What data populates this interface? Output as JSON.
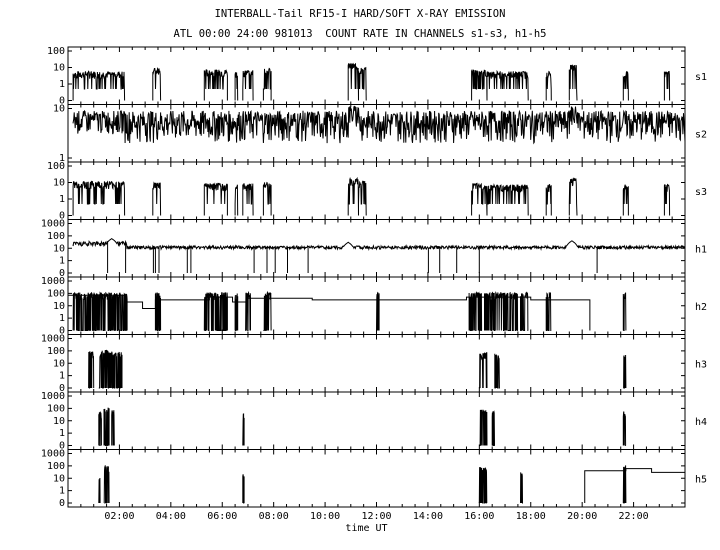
{
  "title": "INTERBALL-Tail RF15-I HARD/SOFT X-RAY EMISSION",
  "subtitle": "ATL 00:00 24:00 981013  COUNT RATE IN CHANNELS s1-s3, h1-h5",
  "xlabel": "time UT",
  "chart_data": {
    "type": "line",
    "title": "INTERBALL-Tail RF15-I HARD/SOFT X-RAY EMISSION",
    "subtitle": "ATL 00:00 24:00 981013  COUNT RATE IN CHANNELS s1-s3, h1-h5",
    "xlabel": "time UT",
    "x_range_hours": [
      0,
      24
    ],
    "x_ticks": [
      "02:00",
      "04:00",
      "06:00",
      "08:00",
      "10:00",
      "12:00",
      "14:00",
      "16:00",
      "18:00",
      "20:00",
      "22:00"
    ],
    "y_scale": "log",
    "panels": [
      {
        "name": "s1",
        "yticks": [
          "100",
          "10",
          "1",
          "0"
        ],
        "baseline": 4,
        "bursts": [
          [
            0.2,
            2.2,
            4
          ],
          [
            3.3,
            3.6,
            6
          ],
          [
            5.3,
            6.2,
            5
          ],
          [
            6.5,
            6.6,
            4
          ],
          [
            6.8,
            7.2,
            5
          ],
          [
            7.6,
            7.9,
            6
          ],
          [
            10.9,
            11.3,
            12
          ],
          [
            11.3,
            11.6,
            7
          ],
          [
            15.7,
            16.3,
            5
          ],
          [
            16.3,
            17.9,
            4
          ],
          [
            18.6,
            18.8,
            4
          ],
          [
            19.5,
            19.8,
            10
          ],
          [
            21.6,
            21.8,
            4
          ],
          [
            23.2,
            23.4,
            4
          ]
        ]
      },
      {
        "name": "s2",
        "yticks": [
          "10",
          "1"
        ],
        "baseline": 5,
        "noise": true,
        "bursts": [
          [
            0.2,
            2.2,
            6
          ],
          [
            10.9,
            11.3,
            8
          ],
          [
            19.5,
            19.8,
            8
          ]
        ]
      },
      {
        "name": "s3",
        "yticks": [
          "100",
          "10",
          "1",
          "0"
        ],
        "baseline": 5,
        "bursts": [
          [
            0.2,
            2.2,
            8
          ],
          [
            3.3,
            3.6,
            7
          ],
          [
            5.3,
            6.2,
            6
          ],
          [
            6.5,
            6.6,
            5
          ],
          [
            6.8,
            7.2,
            6
          ],
          [
            7.6,
            7.9,
            7
          ],
          [
            10.9,
            11.3,
            12
          ],
          [
            11.3,
            11.6,
            9
          ],
          [
            15.7,
            16.3,
            6
          ],
          [
            16.3,
            17.9,
            5
          ],
          [
            18.6,
            18.8,
            5
          ],
          [
            19.5,
            19.8,
            12
          ],
          [
            21.6,
            21.8,
            5
          ],
          [
            23.2,
            23.4,
            5
          ]
        ]
      },
      {
        "name": "h1",
        "yticks": [
          "1000",
          "100",
          "10",
          "1",
          "0"
        ],
        "baseline": 12,
        "peaks": [
          [
            1.7,
            60
          ],
          [
            10.9,
            30
          ],
          [
            19.6,
            40
          ]
        ]
      },
      {
        "name": "h2",
        "yticks": [
          "1000",
          "100",
          "10",
          "1",
          "0"
        ],
        "steps": [
          [
            0,
            70
          ],
          [
            2.2,
            20
          ],
          [
            2.9,
            6
          ],
          [
            3.4,
            30
          ],
          [
            5.5,
            50
          ],
          [
            6.4,
            20
          ],
          [
            7.0,
            40
          ],
          [
            9.5,
            30
          ],
          [
            12.0,
            30
          ],
          [
            15.5,
            50
          ],
          [
            18.0,
            30
          ],
          [
            20.1,
            30
          ],
          [
            20.3,
            0
          ]
        ],
        "bursts": [
          [
            0.2,
            2.3
          ],
          [
            3.4,
            3.6
          ],
          [
            5.3,
            6.2
          ],
          [
            6.5,
            6.6
          ],
          [
            6.9,
            7.1
          ],
          [
            7.6,
            7.9
          ],
          [
            12.0,
            12.1
          ],
          [
            15.6,
            16.1
          ],
          [
            16.2,
            17.5
          ],
          [
            17.6,
            17.9
          ],
          [
            18.6,
            18.8
          ],
          [
            21.6,
            21.7
          ]
        ]
      },
      {
        "name": "h3",
        "yticks": [
          "1000",
          "100",
          "10",
          "1",
          "0"
        ],
        "bursts": [
          [
            0.8,
            1.0,
            80
          ],
          [
            1.2,
            1.3,
            60
          ],
          [
            1.3,
            1.6,
            100
          ],
          [
            1.6,
            1.8,
            80
          ],
          [
            1.8,
            2.1,
            70
          ],
          [
            16.0,
            16.3,
            60
          ],
          [
            16.6,
            16.8,
            50
          ],
          [
            21.6,
            21.7,
            40
          ]
        ]
      },
      {
        "name": "h4",
        "yticks": [
          "1000",
          "100",
          "10",
          "1",
          "0"
        ],
        "bursts": [
          [
            1.2,
            1.3,
            40
          ],
          [
            1.4,
            1.6,
            100
          ],
          [
            1.7,
            1.8,
            60
          ],
          [
            6.8,
            6.85,
            30
          ],
          [
            16.0,
            16.3,
            70
          ],
          [
            16.5,
            16.6,
            50
          ],
          [
            21.6,
            21.7,
            50
          ]
        ]
      },
      {
        "name": "h5",
        "yticks": [
          "1000",
          "100",
          "10",
          "1",
          "0"
        ],
        "bursts": [
          [
            1.2,
            1.25,
            20
          ],
          [
            1.4,
            1.6,
            100
          ],
          [
            6.8,
            6.85,
            20
          ],
          [
            16.0,
            16.3,
            70
          ],
          [
            17.6,
            17.7,
            30
          ],
          [
            21.6,
            21.7,
            100
          ]
        ],
        "steps": [
          [
            20.1,
            0
          ],
          [
            20.1,
            40
          ],
          [
            21.6,
            40
          ],
          [
            21.7,
            60
          ],
          [
            22.6,
            60
          ],
          [
            22.7,
            30
          ],
          [
            24,
            30
          ]
        ]
      }
    ]
  }
}
